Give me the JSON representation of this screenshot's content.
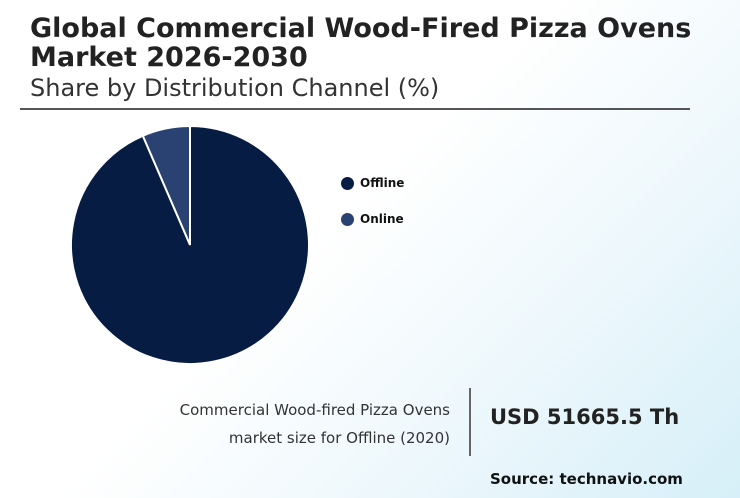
{
  "header": {
    "title": "Global Commercial Wood-Fired Pizza Ovens Market 2026-2030",
    "subtitle": "Share by Distribution Channel (%)"
  },
  "chart_data": {
    "type": "pie",
    "categories": [
      "Offline",
      "Online"
    ],
    "values": [
      93.5,
      6.5
    ],
    "colors": [
      "#071c43",
      "#2a4272"
    ],
    "legend": "right"
  },
  "legend": {
    "items": [
      {
        "label": "Offline",
        "color": "#071c43"
      },
      {
        "label": "Online",
        "color": "#2a4272"
      }
    ]
  },
  "info": {
    "label_line1": "Commercial Wood-fired Pizza Ovens",
    "label_line2": "market size for Offline (2020)",
    "value": "USD 51665.5 Th"
  },
  "footer": {
    "source": "Source: technavio.com"
  }
}
